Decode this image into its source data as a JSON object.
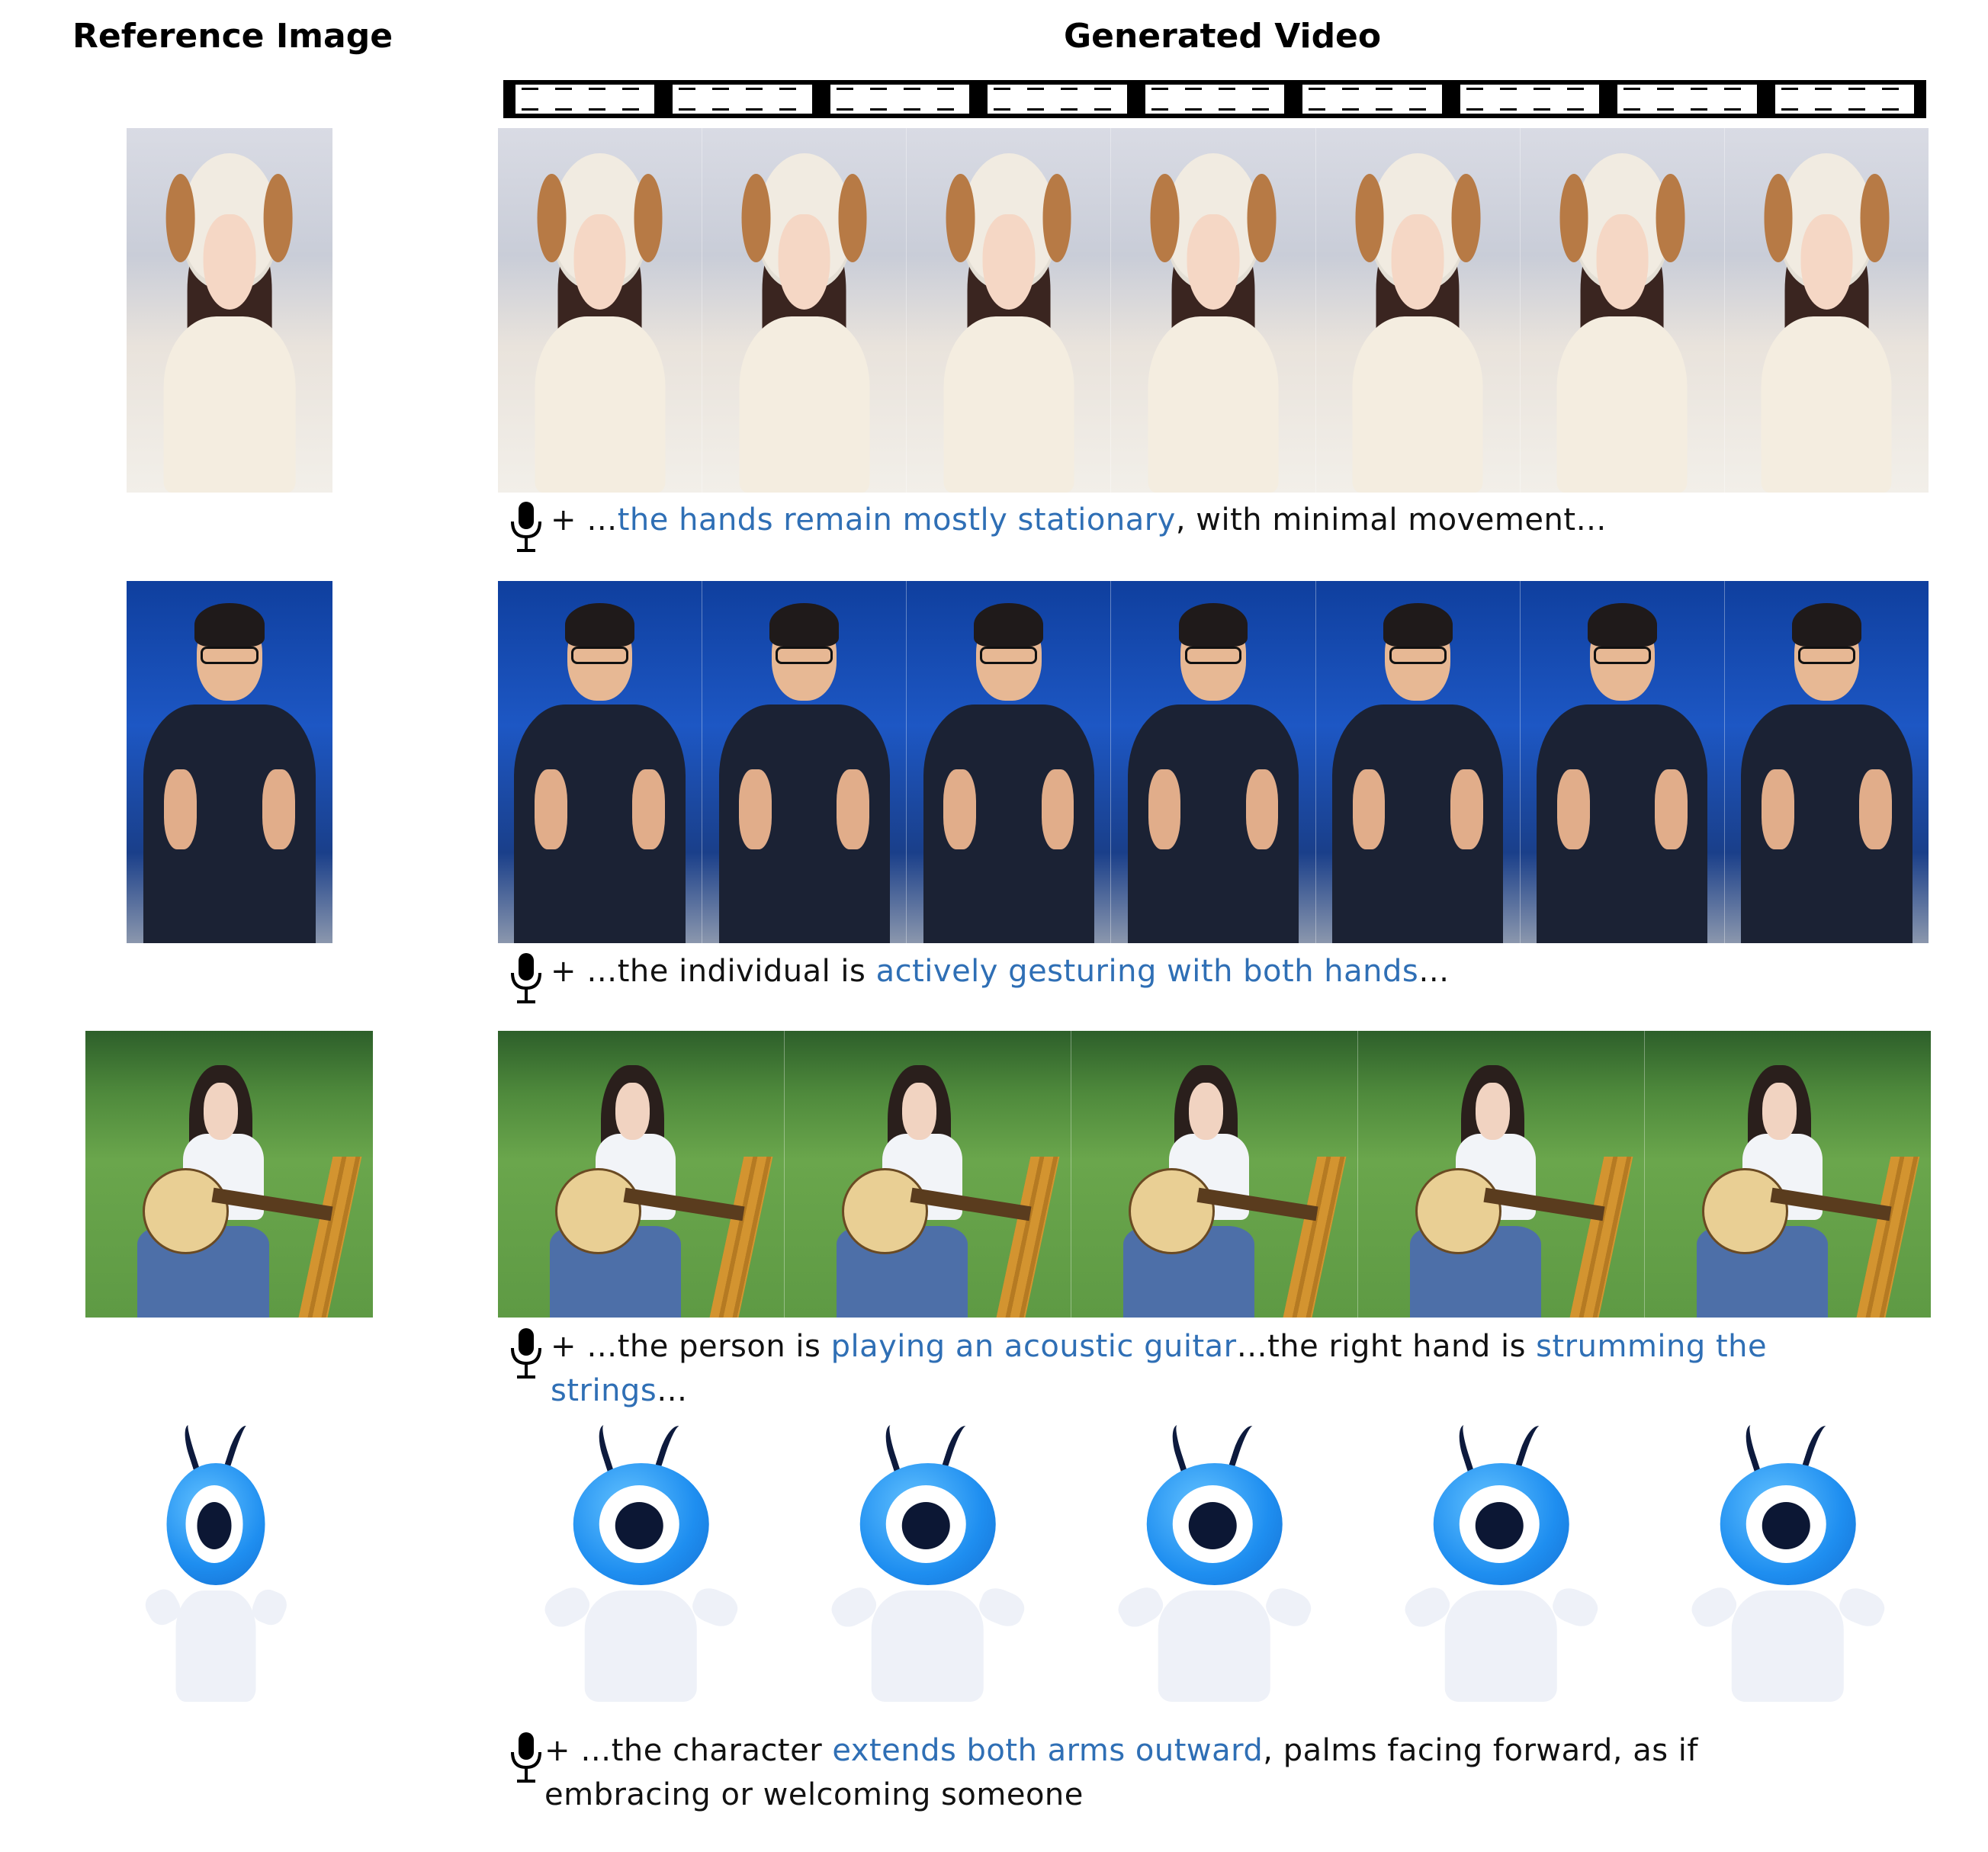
{
  "headers": {
    "reference": "Reference Image",
    "generated": "Generated Video"
  },
  "rows": [
    {
      "caption_pre": "+ …",
      "caption_hl1": "the hands remain mostly stationary",
      "caption_mid": ", with minimal movement…",
      "frame_count": 7
    },
    {
      "caption_pre": "+ …the individual is ",
      "caption_hl1": "actively gesturing with both hands",
      "caption_mid": "…",
      "frame_count": 7
    },
    {
      "caption_pre": "+ …the person is ",
      "caption_hl1": "playing an acoustic guitar",
      "caption_mid": "…the right hand is ",
      "caption_hl2": "strumming the",
      "caption_line2_hl": "strings",
      "caption_line2_post": "…",
      "frame_count": 5
    },
    {
      "caption_pre": "+ …the character ",
      "caption_hl1": "extends both arms outward",
      "caption_mid": ", palms facing forward, as if",
      "caption_line2": "embracing or welcoming someone",
      "frame_count": 5
    }
  ],
  "colors": {
    "highlight": "#2f6fb5",
    "text": "#111111"
  },
  "icons": {
    "audio": "microphone-icon",
    "filmstrip": "filmstrip-icon"
  }
}
